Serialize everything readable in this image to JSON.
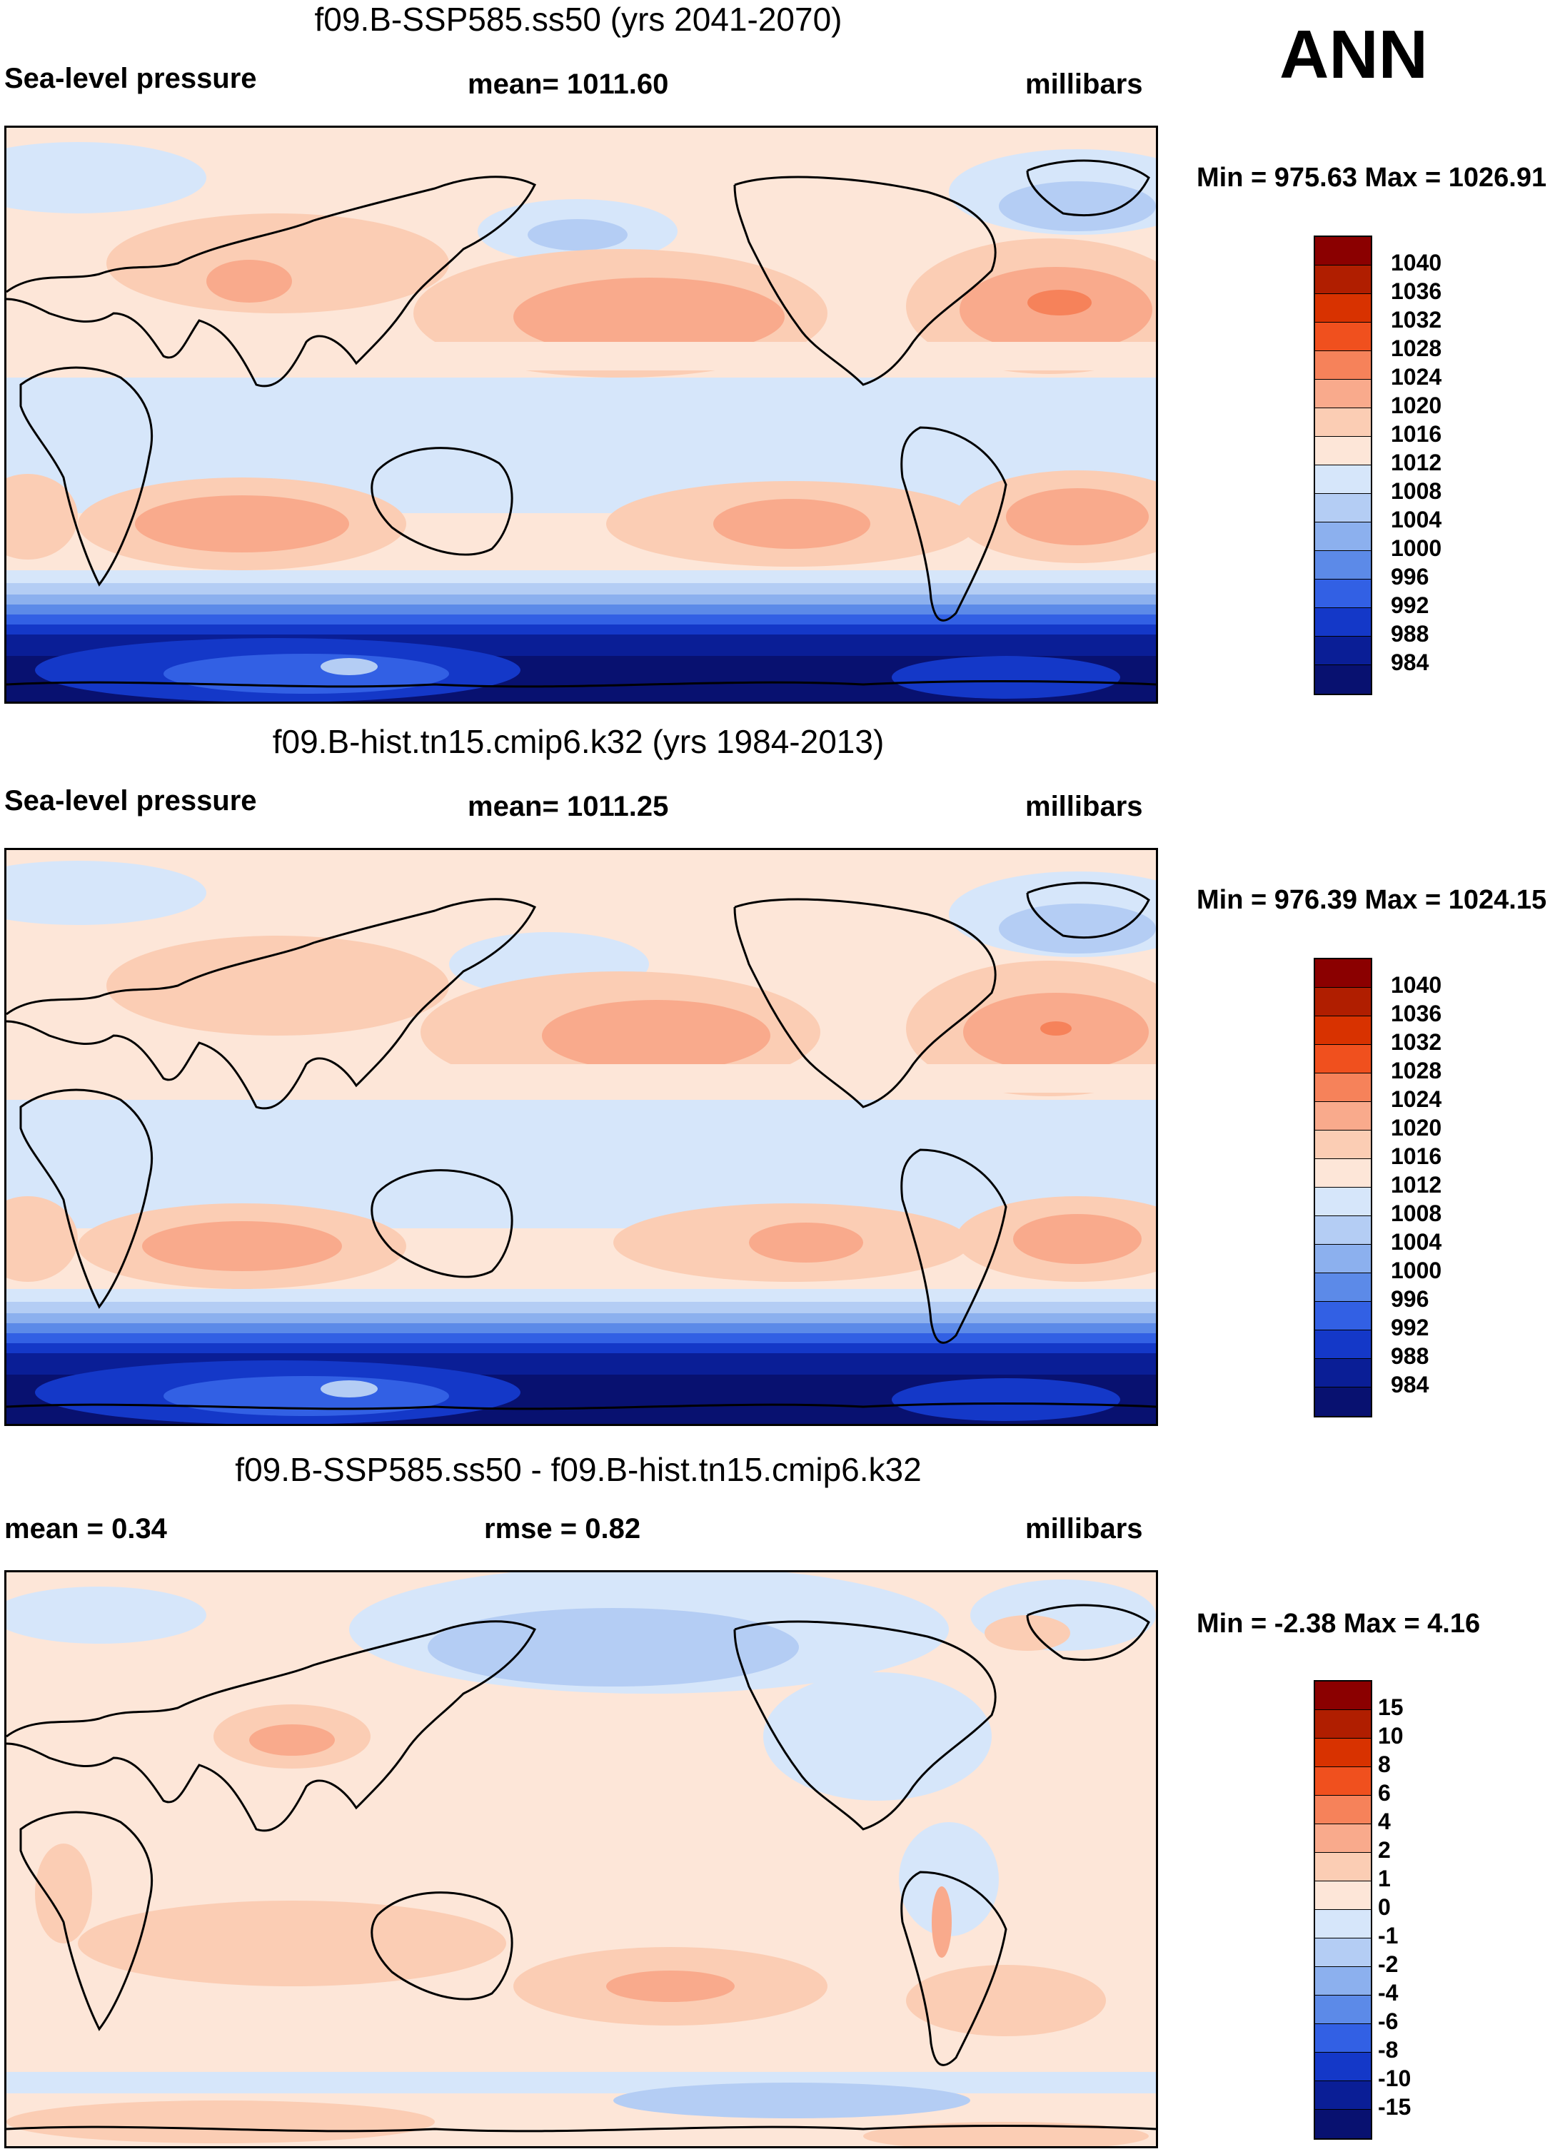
{
  "label_ann": "ANN",
  "panels": [
    {
      "id": "p1",
      "title": "f09.B-SSP585.ss50 (yrs 2041-2070)",
      "left_label": "Sea-level pressure",
      "center_label": "mean= 1011.60",
      "right_label": "millibars",
      "minmax": "Min = 975.63 Max = 1026.91",
      "levels": [
        "1040",
        "1036",
        "1032",
        "1028",
        "1024",
        "1020",
        "1016",
        "1012",
        "1008",
        "1004",
        "1000",
        "996",
        "992",
        "988",
        "984"
      ]
    },
    {
      "id": "p2",
      "title": "f09.B-hist.tn15.cmip6.k32 (yrs 1984-2013)",
      "left_label": "Sea-level pressure",
      "center_label": "mean= 1011.25",
      "right_label": "millibars",
      "minmax": "Min = 976.39 Max = 1024.15",
      "levels": [
        "1040",
        "1036",
        "1032",
        "1028",
        "1024",
        "1020",
        "1016",
        "1012",
        "1008",
        "1004",
        "1000",
        "996",
        "992",
        "988",
        "984"
      ]
    },
    {
      "id": "p3",
      "title": "f09.B-SSP585.ss50 - f09.B-hist.tn15.cmip6.k32",
      "left_label": "mean =   0.34",
      "center_label": "rmse =   0.82",
      "right_label": "millibars",
      "minmax": "Min =  -2.38 Max =   4.16",
      "levels": [
        "15",
        "10",
        "8",
        "6",
        "4",
        "2",
        "1",
        "0",
        "-1",
        "-2",
        "-4",
        "-6",
        "-8",
        "-10",
        "-15"
      ]
    }
  ],
  "colors": {
    "scale": [
      "#8b0000",
      "#b01e00",
      "#d83200",
      "#f0501e",
      "#f6825a",
      "#f9aa8c",
      "#fbcdb4",
      "#fde6d8",
      "#d6e6fa",
      "#b4cdf4",
      "#8cb0ee",
      "#5c8ae8",
      "#3260e4",
      "#1438c8",
      "#0a1e96",
      "#081170"
    ],
    "land_outline": "#000000"
  }
}
